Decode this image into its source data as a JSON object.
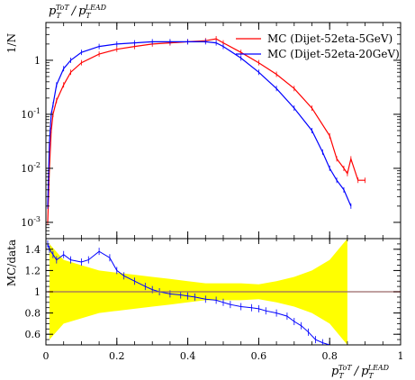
{
  "chart_data": [
    {
      "type": "line",
      "panel": "main",
      "title": "p_T^ToT / p_T^LEAD",
      "ylabel": "1/N",
      "yscale": "log",
      "xlim": [
        0,
        1
      ],
      "ylim": [
        0.0005,
        5
      ],
      "ytick_labels": [
        "10^{-3}",
        "10^{-2}",
        "10^{-1}",
        "1"
      ],
      "legend_position": "top-right",
      "series": [
        {
          "name": "MC (Dijet-52eta-5GeV)",
          "color": "#ff0000",
          "x": [
            0.005,
            0.01,
            0.015,
            0.02,
            0.03,
            0.05,
            0.07,
            0.1,
            0.15,
            0.2,
            0.25,
            0.3,
            0.35,
            0.4,
            0.45,
            0.48,
            0.5,
            0.55,
            0.6,
            0.65,
            0.7,
            0.75,
            0.8,
            0.82,
            0.84,
            0.85,
            0.86,
            0.88,
            0.9
          ],
          "y": [
            0.001,
            0.01,
            0.05,
            0.1,
            0.18,
            0.35,
            0.6,
            0.9,
            1.3,
            1.6,
            1.8,
            2.0,
            2.1,
            2.2,
            2.3,
            2.5,
            2.1,
            1.4,
            0.9,
            0.55,
            0.3,
            0.13,
            0.04,
            0.015,
            0.01,
            0.008,
            0.015,
            0.006,
            0.006
          ]
        },
        {
          "name": "MC (Dijet-52eta-20GeV)",
          "color": "#0000ff",
          "x": [
            0.005,
            0.01,
            0.015,
            0.02,
            0.03,
            0.05,
            0.07,
            0.1,
            0.15,
            0.2,
            0.25,
            0.3,
            0.35,
            0.4,
            0.45,
            0.48,
            0.5,
            0.55,
            0.6,
            0.65,
            0.7,
            0.75,
            0.78,
            0.8,
            0.82,
            0.84,
            0.86
          ],
          "y": [
            0.002,
            0.03,
            0.1,
            0.15,
            0.35,
            0.7,
            1.0,
            1.4,
            1.8,
            2.0,
            2.1,
            2.2,
            2.2,
            2.2,
            2.2,
            2.1,
            1.8,
            1.1,
            0.6,
            0.3,
            0.13,
            0.05,
            0.02,
            0.01,
            0.006,
            0.004,
            0.002
          ]
        }
      ]
    },
    {
      "type": "line",
      "panel": "ratio",
      "ylabel": "MC/data",
      "xlabel": "p_T^ToT / p_T^LEAD",
      "xlim": [
        0,
        1
      ],
      "ylim": [
        0.5,
        1.5
      ],
      "xtick_labels": [
        "0",
        "0.2",
        "0.4",
        "0.6",
        "0.8",
        "1"
      ],
      "ytick_labels": [
        "0.6",
        "0.8",
        "1",
        "1.2",
        "1.4"
      ],
      "band": {
        "color": "#ffff00",
        "x": [
          0.01,
          0.05,
          0.1,
          0.15,
          0.2,
          0.25,
          0.3,
          0.35,
          0.4,
          0.45,
          0.5,
          0.55,
          0.6,
          0.65,
          0.7,
          0.75,
          0.8,
          0.85
        ],
        "half_width": [
          0.45,
          0.3,
          0.25,
          0.2,
          0.18,
          0.16,
          0.14,
          0.12,
          0.1,
          0.08,
          0.08,
          0.08,
          0.07,
          0.1,
          0.14,
          0.2,
          0.3,
          0.5
        ]
      },
      "series": [
        {
          "name": "MC (Dijet-52eta-5GeV)",
          "color": "#ff0000",
          "x": [
            0.005,
            0.05,
            0.1,
            0.2,
            0.3,
            0.4,
            0.5,
            0.6,
            0.7,
            0.8,
            0.85,
            0.9,
            1.0
          ],
          "y": [
            1.0,
            1.0,
            1.0,
            1.0,
            1.0,
            1.0,
            1.0,
            1.0,
            1.0,
            1.0,
            1.0,
            1.0,
            1.0
          ]
        },
        {
          "name": "MC (Dijet-52eta-20GeV)",
          "color": "#0000ff",
          "x": [
            0.005,
            0.01,
            0.02,
            0.03,
            0.05,
            0.07,
            0.1,
            0.12,
            0.15,
            0.18,
            0.2,
            0.22,
            0.25,
            0.28,
            0.3,
            0.32,
            0.35,
            0.38,
            0.4,
            0.42,
            0.45,
            0.48,
            0.5,
            0.52,
            0.55,
            0.58,
            0.6,
            0.62,
            0.65,
            0.68,
            0.7,
            0.72,
            0.74,
            0.76,
            0.78,
            0.8
          ],
          "y": [
            1.45,
            1.4,
            1.35,
            1.3,
            1.35,
            1.3,
            1.28,
            1.3,
            1.38,
            1.32,
            1.2,
            1.15,
            1.1,
            1.05,
            1.02,
            1.0,
            0.98,
            0.97,
            0.96,
            0.95,
            0.93,
            0.92,
            0.9,
            0.88,
            0.86,
            0.85,
            0.84,
            0.82,
            0.8,
            0.77,
            0.72,
            0.68,
            0.62,
            0.55,
            0.52,
            0.5
          ]
        }
      ]
    }
  ],
  "legend": {
    "entries": [
      {
        "label": "MC (Dijet-52eta-5GeV)",
        "color": "#ff0000"
      },
      {
        "label": "MC (Dijet-52eta-20GeV)",
        "color": "#0000ff"
      }
    ]
  },
  "colors": {
    "band": "#ffff00",
    "ref_line": "#808080",
    "red": "#ff0000",
    "blue": "#0000ff"
  }
}
